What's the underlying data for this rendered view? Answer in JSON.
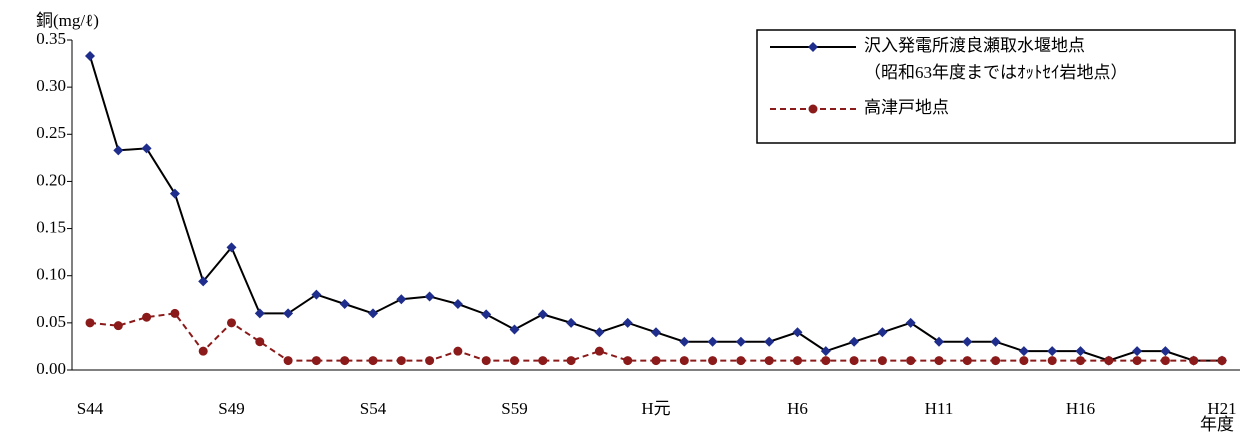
{
  "chart_data": {
    "type": "line",
    "y_label": "銅(mg/ℓ)",
    "x_label": "年度",
    "categories": [
      "S44",
      null,
      null,
      null,
      null,
      "S49",
      null,
      null,
      null,
      null,
      "S54",
      null,
      null,
      null,
      null,
      "S59",
      null,
      null,
      null,
      null,
      "H元",
      null,
      null,
      null,
      null,
      "H6",
      null,
      null,
      null,
      null,
      "H11",
      null,
      null,
      null,
      null,
      "H16",
      null,
      null,
      null,
      null,
      "H21"
    ],
    "series": [
      {
        "name": "沢入発電所渡良瀬取水堰地点",
        "note": "（昭和63年度まではｵｯﾄｾｲ岩地点）",
        "color": "#000000",
        "marker_color": "#1f2e8c",
        "marker": "diamond",
        "dash": false,
        "values": [
          0.333,
          0.233,
          0.235,
          0.187,
          0.094,
          0.13,
          0.06,
          0.06,
          0.08,
          0.07,
          0.06,
          0.075,
          0.078,
          0.07,
          0.059,
          0.043,
          0.059,
          0.05,
          0.04,
          0.05,
          0.04,
          0.03,
          0.03,
          0.03,
          0.03,
          0.04,
          0.02,
          0.03,
          0.04,
          0.05,
          0.03,
          0.03,
          0.03,
          0.02,
          0.02,
          0.02,
          0.01,
          0.02,
          0.02,
          0.01,
          0.01
        ]
      },
      {
        "name": "高津戸地点",
        "color": "#8b1a1a",
        "marker_color": "#8b1a1a",
        "marker": "circle",
        "dash": true,
        "values": [
          0.05,
          0.047,
          0.056,
          0.06,
          0.02,
          0.05,
          0.03,
          0.01,
          0.01,
          0.01,
          0.01,
          0.01,
          0.01,
          0.02,
          0.01,
          0.01,
          0.01,
          0.01,
          0.02,
          0.01,
          0.01,
          0.01,
          0.01,
          0.01,
          0.01,
          0.01,
          0.01,
          0.01,
          0.01,
          0.01,
          0.01,
          0.01,
          0.01,
          0.01,
          0.01,
          0.01,
          0.01,
          0.01,
          0.01,
          0.01,
          0.01
        ]
      }
    ],
    "ylim": [
      0,
      0.35
    ],
    "yticks": [
      {
        "value": 0,
        "label": "0.00"
      },
      {
        "value": 0.05,
        "label": "0.05"
      },
      {
        "value": 0.1,
        "label": "0.10"
      },
      {
        "value": 0.15,
        "label": "0.15"
      },
      {
        "value": 0.2,
        "label": "0.20"
      },
      {
        "value": 0.25,
        "label": "0.25"
      },
      {
        "value": 0.3,
        "label": "0.30"
      },
      {
        "value": 0.35,
        "label": "0.35"
      }
    ],
    "grid": false
  }
}
